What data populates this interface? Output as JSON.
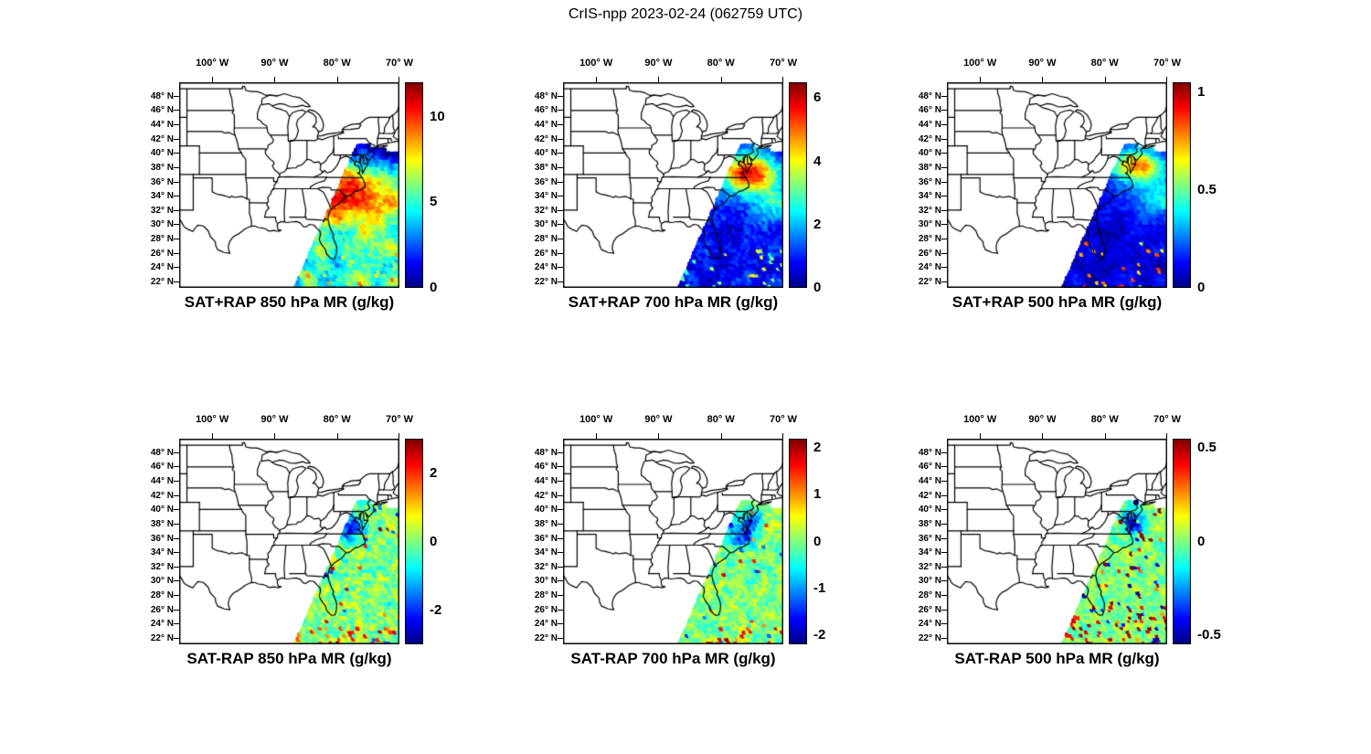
{
  "figure_title": "CrIS-npp 2023-02-24 (062759 UTC)",
  "instrument": "CrIS-npp",
  "date": "2023-02-24",
  "time_utc": "062759",
  "axes": {
    "lon_tick_labels": [
      "100° W",
      "90° W",
      "80° W",
      "70° W"
    ],
    "lat_tick_labels": [
      "48° N",
      "46° N",
      "44° N",
      "42° N",
      "40° N",
      "38° N",
      "36° N",
      "34° N",
      "32° N",
      "30° N",
      "28° N",
      "26° N",
      "24° N",
      "22° N"
    ]
  },
  "swath_coverage": "CrIS satellite swath: diagonal band over the southeastern US coast and western Atlantic, from about (86W, 22N) northeast to (76W, 41N), extending east beyond 70W; no data northwest of the swath edge",
  "chart_data": [
    {
      "id": "sat-plus-rap-850",
      "type": "heatmap",
      "row": 0,
      "col": 0,
      "title": "SAT+RAP 850 hPa MR (g/kg)",
      "operation": "SAT+RAP",
      "level_hPa": 850,
      "variable": "mixing ratio",
      "units": "g/kg",
      "colormap": "jet",
      "value_range": [
        0,
        12
      ],
      "colorbar_ticks": [
        0,
        5,
        10
      ],
      "lon_range_deg_w": [
        105.3,
        70.0
      ],
      "lat_range_deg_n": [
        21.1,
        49.9
      ],
      "lon_ticks_deg_w": [
        100,
        90,
        80,
        70
      ],
      "lat_ticks_deg_n": [
        48,
        46,
        44,
        42,
        40,
        38,
        36,
        34,
        32,
        30,
        28,
        26,
        24,
        22
      ],
      "field": "p850sum",
      "features": "Moist band 8-12 g/kg along SE US coast 30-37N; dry air under 2 g/kg north of 39N; 3-7 g/kg mottled field over subtropical Atlantic; orange speckle rings near south scan edge"
    },
    {
      "id": "sat-plus-rap-700",
      "type": "heatmap",
      "row": 0,
      "col": 1,
      "title": "SAT+RAP 700 hPa MR (g/kg)",
      "operation": "SAT+RAP",
      "level_hPa": 700,
      "variable": "mixing ratio",
      "units": "g/kg",
      "colormap": "jet",
      "value_range": [
        0,
        6.5
      ],
      "colorbar_ticks": [
        0,
        2,
        4,
        6
      ],
      "lon_range_deg_w": [
        105.3,
        70.0
      ],
      "lat_range_deg_n": [
        21.1,
        49.9
      ],
      "lon_ticks_deg_w": [
        100,
        90,
        80,
        70
      ],
      "lat_ticks_deg_n": [
        48,
        46,
        44,
        42,
        40,
        38,
        36,
        34,
        32,
        30,
        28,
        26,
        24,
        22
      ],
      "field": "p700sum",
      "features": "Mostly 0-1.5 g/kg (dark blue); moist plume up to ~6 g/kg near 35-39N 78-73W; weak cyan arc offshore ~31-35N; speckles near south scan edge"
    },
    {
      "id": "sat-plus-rap-500",
      "type": "heatmap",
      "row": 0,
      "col": 2,
      "title": "SAT+RAP 500 hPa MR (g/kg)",
      "operation": "SAT+RAP",
      "level_hPa": 500,
      "variable": "mixing ratio",
      "units": "g/kg",
      "colormap": "jet",
      "value_range": [
        0,
        1.05
      ],
      "colorbar_ticks": [
        0,
        0.5,
        1
      ],
      "lon_range_deg_w": [
        105.3,
        70.0
      ],
      "lat_range_deg_n": [
        21.1,
        49.9
      ],
      "lon_ticks_deg_w": [
        100,
        90,
        80,
        70
      ],
      "lat_ticks_deg_n": [
        48,
        46,
        44,
        42,
        40,
        38,
        36,
        34,
        32,
        30,
        28,
        26,
        24,
        22
      ],
      "field": "p500sum",
      "features": "Mostly under 0.2 g/kg; enhanced 0.5-1 g/kg patch near 36-40N 77-72W; orange speckles along the southern scan edge"
    },
    {
      "id": "sat-minus-rap-850",
      "type": "heatmap",
      "row": 1,
      "col": 0,
      "title": "SAT-RAP 850 hPa MR (g/kg)",
      "operation": "SAT-RAP",
      "level_hPa": 850,
      "variable": "mixing ratio difference",
      "units": "g/kg",
      "colormap": "jet",
      "value_range": [
        -3,
        3
      ],
      "colorbar_ticks": [
        -2,
        0,
        2
      ],
      "lon_range_deg_w": [
        105.3,
        70.0
      ],
      "lat_range_deg_n": [
        21.1,
        49.9
      ],
      "lon_ticks_deg_w": [
        100,
        90,
        80,
        70
      ],
      "lat_ticks_deg_n": [
        48,
        46,
        44,
        42,
        40,
        38,
        36,
        34,
        32,
        30,
        28,
        26,
        24,
        22
      ],
      "field": "p850diff",
      "features": "Differences near 0 (green) over most of swath; negative pocket ~-2 g/kg near 37N 78W; scattered +/-2 speckles offshore and red rings at south scan edge"
    },
    {
      "id": "sat-minus-rap-700",
      "type": "heatmap",
      "row": 1,
      "col": 1,
      "title": "SAT-RAP 700 hPa MR (g/kg)",
      "operation": "SAT-RAP",
      "level_hPa": 700,
      "variable": "mixing ratio difference",
      "units": "g/kg",
      "colormap": "jet",
      "value_range": [
        -2.2,
        2.2
      ],
      "colorbar_ticks": [
        -2,
        -1,
        0,
        1,
        2
      ],
      "lon_range_deg_w": [
        105.3,
        70.0
      ],
      "lat_range_deg_n": [
        21.1,
        49.9
      ],
      "lon_ticks_deg_w": [
        100,
        90,
        80,
        70
      ],
      "lat_ticks_deg_n": [
        48,
        46,
        44,
        42,
        40,
        38,
        36,
        34,
        32,
        30,
        28,
        26,
        24,
        22
      ],
      "field": "p700diff",
      "features": "Mostly near-zero green; negative (blue) pockets near mid-Atlantic coast 36-39N; +/-1 to 2 speckles; orange arcs at south scan edge"
    },
    {
      "id": "sat-minus-rap-500",
      "type": "heatmap",
      "row": 1,
      "col": 2,
      "title": "SAT-RAP 500 hPa MR (g/kg)",
      "operation": "SAT-RAP",
      "level_hPa": 500,
      "variable": "mixing ratio difference",
      "units": "g/kg",
      "colormap": "jet",
      "value_range": [
        -0.55,
        0.55
      ],
      "colorbar_ticks": [
        -0.5,
        0,
        0.5
      ],
      "lon_range_deg_w": [
        105.3,
        70.0
      ],
      "lat_range_deg_n": [
        21.1,
        49.9
      ],
      "lon_ticks_deg_w": [
        100,
        90,
        80,
        70
      ],
      "lat_ticks_deg_n": [
        48,
        46,
        44,
        42,
        40,
        38,
        36,
        34,
        32,
        30,
        28,
        26,
        24,
        22
      ],
      "field": "p500diff",
      "features": "Near-zero green field; small negative pocket near 38N 75W; many +0.3 to +0.5 red speckles, densest toward the southern scan edge"
    }
  ]
}
